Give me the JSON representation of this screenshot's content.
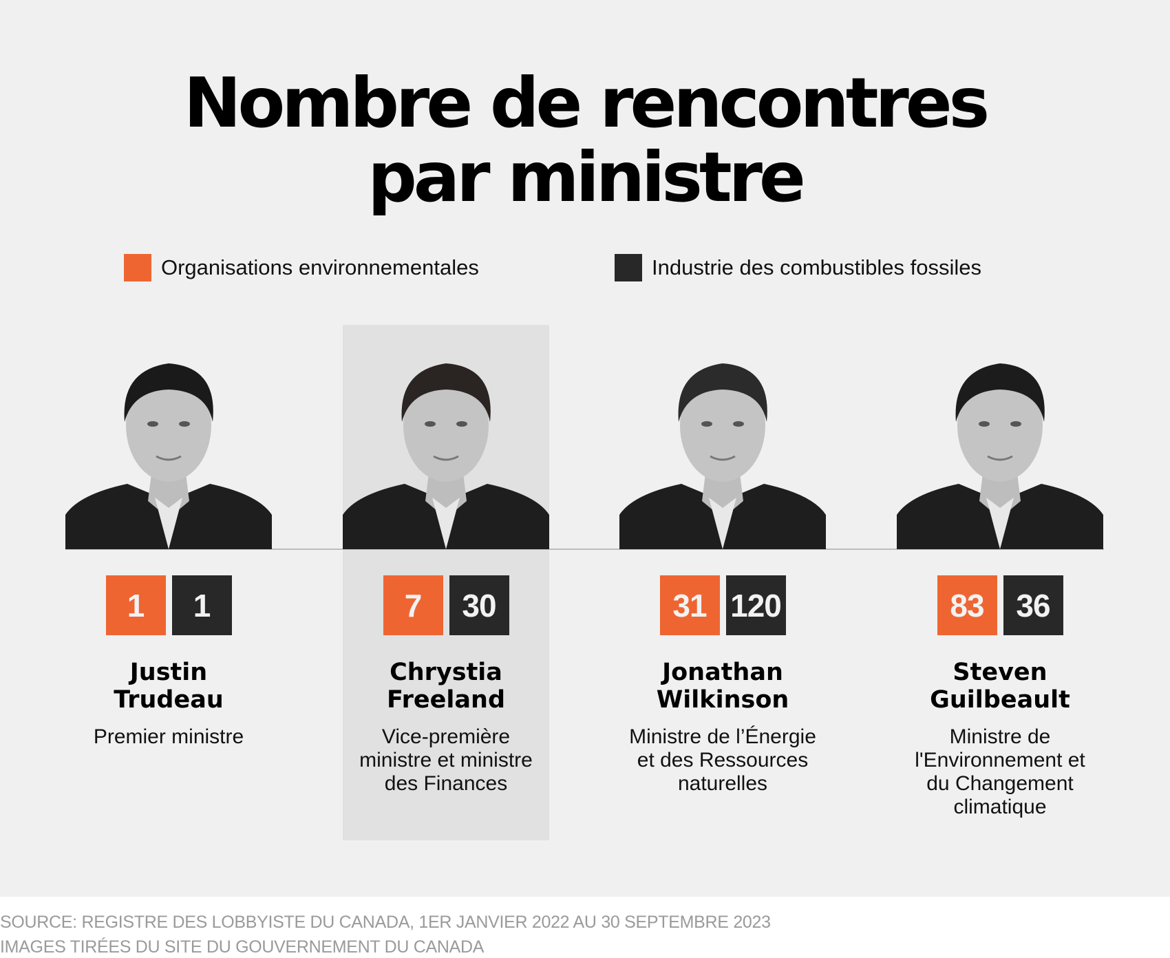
{
  "title": {
    "line1": "Nombre de rencontres",
    "line2": "par ministre"
  },
  "legend": [
    {
      "label": "Organisations environnementales",
      "color": "#ee6532"
    },
    {
      "label": "Industrie des combustibles fossiles",
      "color": "#282828"
    }
  ],
  "ministers": [
    {
      "first": "Justin",
      "last": "Trudeau",
      "role": [
        "Premier ministre"
      ],
      "env": "1",
      "fossil": "1",
      "highlighted": false
    },
    {
      "first": "Chrystia",
      "last": "Freeland",
      "role": [
        "Vice-première",
        "ministre et ministre",
        "des Finances"
      ],
      "env": "7",
      "fossil": "30",
      "highlighted": true
    },
    {
      "first": "Jonathan",
      "last": "Wilkinson",
      "role": [
        "Ministre de l’Énergie",
        "et des Ressources",
        "naturelles"
      ],
      "env": "31",
      "fossil": "120",
      "highlighted": false
    },
    {
      "first": "Steven",
      "last": "Guilbeault",
      "role": [
        "Ministre de",
        "l'Environnement et",
        "du Changement",
        "climatique"
      ],
      "env": "83",
      "fossil": "36",
      "highlighted": false
    }
  ],
  "footer": {
    "source": "SOURCE: REGISTRE DES LOBBYISTE DU CANADA, 1ER JANVIER 2022 AU 30 SEPTEMBRE 2023",
    "images": "IMAGES TIRÉES DU SITE DU GOUVERNEMENT DU CANADA"
  }
}
